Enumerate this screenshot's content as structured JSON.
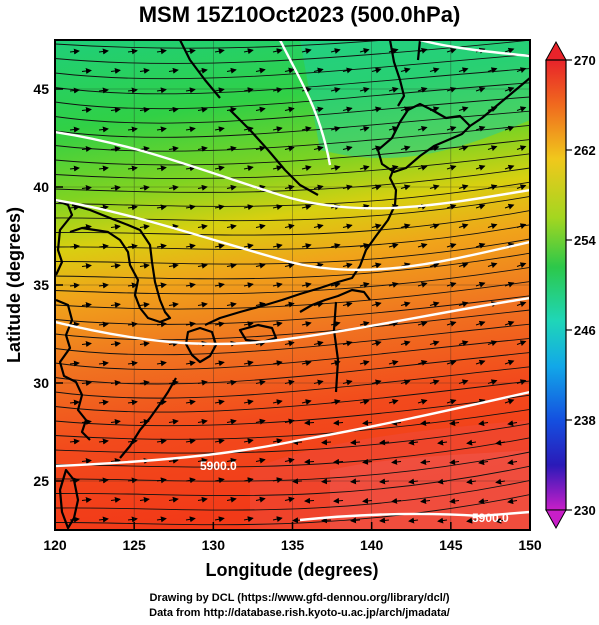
{
  "title": "MSM 15Z10Oct2023 (500.0hPa)",
  "x_axis": {
    "label": "Longitude (degrees)",
    "ticks": [
      "120",
      "125",
      "130",
      "135",
      "140",
      "145",
      "150"
    ]
  },
  "y_axis": {
    "label": "Latitude  (degrees)",
    "ticks": [
      "25",
      "30",
      "35",
      "40",
      "45"
    ]
  },
  "colorbar": {
    "ticks": [
      "270",
      "262",
      "254",
      "246",
      "238",
      "230"
    ]
  },
  "contours": [
    {
      "label": "5900.0"
    },
    {
      "label": "5900.0"
    }
  ],
  "credits": {
    "line1": "Drawing by DCL (https://www.gfd-dennou.org/library/dcl/)",
    "line2": "Data from http://database.rish.kyoto-u.ac.jp/arch/jmadata/"
  },
  "chart_data": {
    "type": "heatmap",
    "title": "MSM 15Z10Oct2023 (500.0hPa)",
    "xlabel": "Longitude (degrees)",
    "ylabel": "Latitude  (degrees)",
    "xlim": [
      120,
      150
    ],
    "ylim": [
      22.5,
      47.5
    ],
    "color_range": [
      230,
      270
    ],
    "colorbar_ticks": [
      230,
      238,
      246,
      254,
      262,
      270
    ],
    "overlays": [
      "temperature shading",
      "streamlines (wind)",
      "geopotential height contours (white)",
      "coastlines"
    ],
    "contour_labels": [
      "5900.0",
      "5900.0"
    ],
    "grid": true
  }
}
